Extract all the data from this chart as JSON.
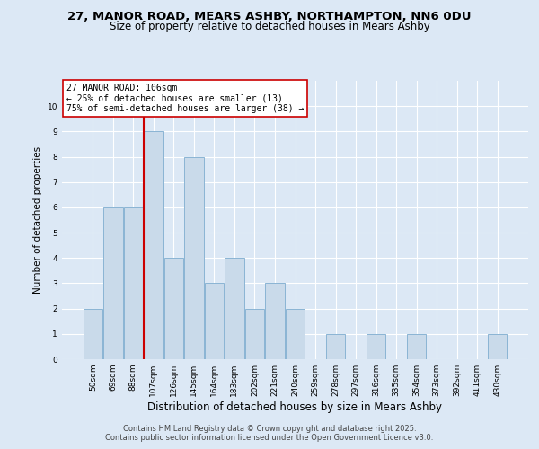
{
  "title1": "27, MANOR ROAD, MEARS ASHBY, NORTHAMPTON, NN6 0DU",
  "title2": "Size of property relative to detached houses in Mears Ashby",
  "xlabel": "Distribution of detached houses by size in Mears Ashby",
  "ylabel": "Number of detached properties",
  "categories": [
    "50sqm",
    "69sqm",
    "88sqm",
    "107sqm",
    "126sqm",
    "145sqm",
    "164sqm",
    "183sqm",
    "202sqm",
    "221sqm",
    "240sqm",
    "259sqm",
    "278sqm",
    "297sqm",
    "316sqm",
    "335sqm",
    "354sqm",
    "373sqm",
    "392sqm",
    "411sqm",
    "430sqm"
  ],
  "values": [
    2,
    6,
    6,
    9,
    4,
    8,
    3,
    4,
    2,
    3,
    2,
    0,
    1,
    0,
    1,
    0,
    1,
    0,
    0,
    0,
    1
  ],
  "bar_color": "#c9daea",
  "bar_edge_color": "#8ab4d4",
  "bar_linewidth": 0.7,
  "vline_index": 3,
  "vline_color": "#cc0000",
  "annotation_text": "27 MANOR ROAD: 106sqm\n← 25% of detached houses are smaller (13)\n75% of semi-detached houses are larger (38) →",
  "annotation_box_color": "#ffffff",
  "annotation_box_edge": "#cc0000",
  "annotation_fontsize": 7,
  "ylim": [
    0,
    11
  ],
  "yticks": [
    0,
    1,
    2,
    3,
    4,
    5,
    6,
    7,
    8,
    9,
    10,
    11
  ],
  "background_color": "#dce8f5",
  "plot_bg_color": "#dce8f5",
  "grid_color": "#ffffff",
  "footer1": "Contains HM Land Registry data © Crown copyright and database right 2025.",
  "footer2": "Contains public sector information licensed under the Open Government Licence v3.0.",
  "title_fontsize": 9.5,
  "subtitle_fontsize": 8.5,
  "xlabel_fontsize": 8.5,
  "ylabel_fontsize": 7.5,
  "tick_fontsize": 6.5,
  "footer_fontsize": 6
}
